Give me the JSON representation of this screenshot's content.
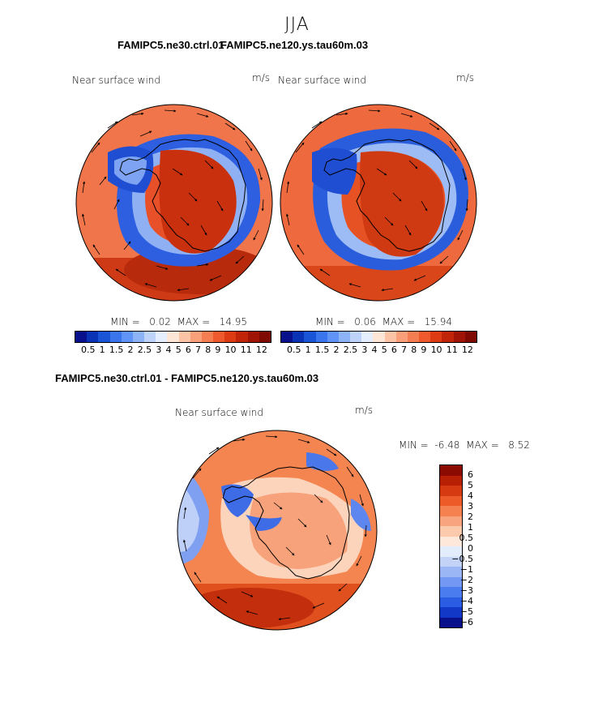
{
  "season": "JJA",
  "panels": [
    {
      "case": "FAMIPC5.ne30.ctrl.01",
      "variable": "Near surface wind",
      "units": "m/s",
      "min_label": "MIN =",
      "min": "0.02",
      "max_label": "MAX =",
      "max": "14.95"
    },
    {
      "case": "FAMIPC5.ne120.ys.tau60m.03",
      "variable": "Near surface wind",
      "units": "m/s",
      "min_label": "MIN =",
      "min": "0.06",
      "max_label": "MAX =",
      "max": "15.94"
    }
  ],
  "diff_panel": {
    "title": "FAMIPC5.ne30.ctrl.01 - FAMIPC5.ne120.ys.tau60m.03",
    "variable": "Near surface wind",
    "units": "m/s",
    "min_label": "MIN =",
    "min": "-6.48",
    "max_label": "MAX =",
    "max": "8.52"
  },
  "colorbar_main": {
    "colors": [
      "#08108c",
      "#0a32b4",
      "#1a55d8",
      "#3a75ee",
      "#5f93f6",
      "#8db3f7",
      "#bdd3fa",
      "#e4eefc",
      "#fde6d6",
      "#fcc4a4",
      "#f9a07a",
      "#f57d52",
      "#ee5a2e",
      "#dc3b14",
      "#c0250a",
      "#a01406",
      "#7e0a02"
    ],
    "tick_labels": [
      "0.5",
      "1",
      "1.5",
      "2",
      "2.5",
      "3",
      "4",
      "5",
      "6",
      "7",
      "8",
      "9",
      "10",
      "11",
      "12"
    ]
  },
  "colorbar_diff": {
    "colors": [
      "#08108c",
      "#1238c8",
      "#2a5de4",
      "#4a7cf0",
      "#7398f3",
      "#9bb6f5",
      "#c3d3f8",
      "#e3ecfb",
      "#fde8da",
      "#fbc9ab",
      "#f8a47e",
      "#f4814f",
      "#ec5b28",
      "#d63a10",
      "#b82006",
      "#8b0a02"
    ],
    "tick_labels": [
      "6",
      "5",
      "4",
      "3",
      "2",
      "1",
      "0.5",
      "0",
      "−0.5",
      "−1",
      "−2",
      "−3",
      "−4",
      "−5",
      "−6"
    ]
  }
}
